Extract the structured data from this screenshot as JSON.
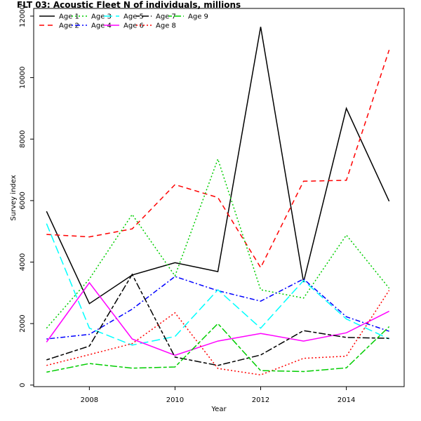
{
  "chart_data": {
    "type": "line",
    "title": "FLT 03: Acoustic Fleet   N of individuals, millions",
    "xlabel": "Year",
    "ylabel": "Survey index",
    "xlim": [
      2006.7,
      2015.35
    ],
    "ylim": [
      -50,
      12250
    ],
    "x_ticks": [
      2008,
      2010,
      2012,
      2014
    ],
    "y_ticks": [
      0,
      2000,
      4000,
      6000,
      8000,
      10000,
      12000
    ],
    "grid": false,
    "legend_position": "top-left",
    "x": [
      2007,
      2008,
      2009,
      2010,
      2011,
      2012,
      2013,
      2014,
      2015
    ],
    "series": [
      {
        "name": "Age 1",
        "color": "#000000",
        "dash": "solid",
        "values": [
          5650,
          2650,
          3580,
          3980,
          3690,
          11650,
          3350,
          9000,
          5980
        ]
      },
      {
        "name": "Age 2",
        "color": "#ff0000",
        "dash": "dashed",
        "values": [
          4900,
          4820,
          5080,
          6520,
          6100,
          3820,
          6630,
          6660,
          10900
        ]
      },
      {
        "name": "Age 3",
        "color": "#00cd00",
        "dash": "dotted",
        "values": [
          1850,
          3450,
          5550,
          3550,
          7350,
          3100,
          2830,
          4880,
          3150
        ]
      },
      {
        "name": "Age 4",
        "color": "#0000ff",
        "dash": "dotdash",
        "values": [
          1500,
          1650,
          2470,
          3530,
          3070,
          2730,
          3450,
          2220,
          1750
        ]
      },
      {
        "name": "Age 5",
        "color": "#00ffff",
        "dash": "longdash",
        "values": [
          5250,
          1850,
          1300,
          1580,
          3100,
          1850,
          3400,
          2150,
          1500
        ]
      },
      {
        "name": "Age 6",
        "color": "#ff00ff",
        "dash": "solid",
        "values": [
          1400,
          3330,
          1500,
          970,
          1430,
          1680,
          1430,
          1700,
          2400
        ]
      },
      {
        "name": "Age 7",
        "color": "#000000",
        "dash": "twodash",
        "values": [
          820,
          1270,
          3600,
          910,
          640,
          980,
          1770,
          1550,
          1520
        ]
      },
      {
        "name": "Age 8",
        "color": "#ff0000",
        "dash": "dotted",
        "values": [
          640,
          990,
          1350,
          2350,
          540,
          330,
          870,
          940,
          3080
        ]
      },
      {
        "name": "Age 9",
        "color": "#00cd00",
        "dash": "twodash",
        "values": [
          420,
          700,
          550,
          590,
          2000,
          470,
          440,
          560,
          1900
        ]
      }
    ]
  }
}
